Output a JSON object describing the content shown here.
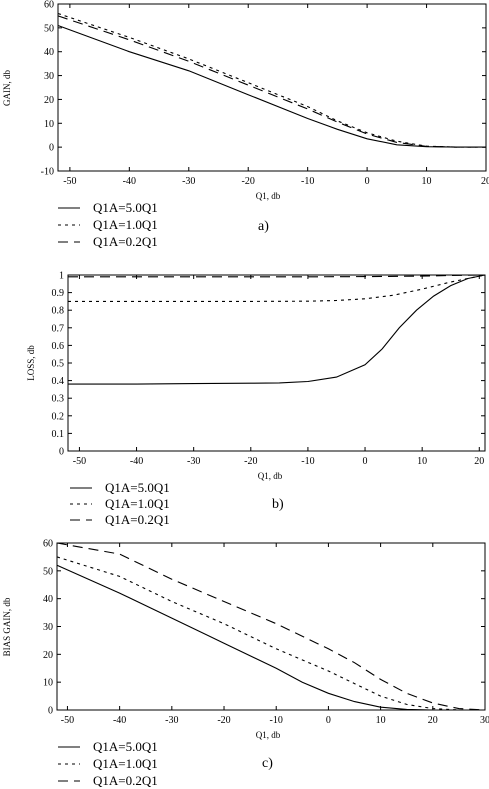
{
  "chart_data": [
    {
      "type": "line",
      "panel_label": "a)",
      "xlabel": "Q1, db",
      "ylabel": "GAIN, db",
      "xlim": [
        -52,
        20
      ],
      "ylim": [
        -10,
        60
      ],
      "xticks": [
        -50,
        -40,
        -30,
        -20,
        -10,
        0,
        10,
        20
      ],
      "yticks": [
        -10,
        0,
        10,
        20,
        30,
        40,
        50,
        60
      ],
      "grid": false,
      "legend_position": "bottom-left",
      "series": [
        {
          "name": "Q1A=5.0Q1",
          "dash": "solid",
          "x": [
            -52,
            -40,
            -30,
            -20,
            -10,
            -5,
            0,
            5,
            10,
            15,
            20
          ],
          "y": [
            51,
            40,
            32,
            22,
            12,
            7.5,
            3.5,
            1,
            0.2,
            0,
            0
          ]
        },
        {
          "name": "Q1A=1.0Q1",
          "dash": "dotted",
          "x": [
            -52,
            -40,
            -30,
            -20,
            -10,
            -5,
            0,
            5,
            10,
            15,
            20
          ],
          "y": [
            56,
            46,
            37,
            27,
            17,
            11,
            6,
            2.5,
            0.4,
            0,
            0
          ]
        },
        {
          "name": "Q1A=0.2Q1",
          "dash": "dashed",
          "x": [
            -52,
            -40,
            -30,
            -20,
            -10,
            -5,
            0,
            5,
            10,
            15,
            20
          ],
          "y": [
            55,
            45,
            36,
            26,
            16,
            10.5,
            5.5,
            2,
            0.3,
            0,
            0
          ]
        }
      ]
    },
    {
      "type": "line",
      "panel_label": "b)",
      "xlabel": "Q1, db",
      "ylabel": "LOSS, db",
      "xlim": [
        -52,
        21
      ],
      "ylim": [
        0,
        1
      ],
      "xticks": [
        -50,
        -40,
        -30,
        -20,
        -10,
        0,
        10,
        20
      ],
      "yticks": [
        0,
        0.1,
        0.2,
        0.3,
        0.4,
        0.5,
        0.6,
        0.7,
        0.8,
        0.9,
        1
      ],
      "grid": false,
      "legend_position": "bottom-left",
      "series": [
        {
          "name": "Q1A=5.0Q1",
          "dash": "solid",
          "x": [
            -52,
            -40,
            -30,
            -20,
            -15,
            -10,
            -5,
            0,
            3,
            6,
            9,
            12,
            15,
            18,
            21
          ],
          "y": [
            0.38,
            0.38,
            0.383,
            0.385,
            0.387,
            0.395,
            0.42,
            0.49,
            0.58,
            0.7,
            0.8,
            0.88,
            0.94,
            0.98,
            1.0
          ]
        },
        {
          "name": "Q1A=1.0Q1",
          "dash": "dotted",
          "x": [
            -52,
            -40,
            -30,
            -20,
            -10,
            -5,
            0,
            5,
            10,
            15,
            21
          ],
          "y": [
            0.85,
            0.85,
            0.85,
            0.85,
            0.851,
            0.855,
            0.865,
            0.885,
            0.92,
            0.96,
            1.0
          ]
        },
        {
          "name": "Q1A=0.2Q1",
          "dash": "dashed",
          "x": [
            -52,
            -30,
            -10,
            0,
            10,
            15,
            21
          ],
          "y": [
            0.99,
            0.99,
            0.99,
            0.991,
            0.994,
            0.997,
            1.0
          ]
        }
      ]
    },
    {
      "type": "line",
      "panel_label": "c)",
      "xlabel": "Q1, db",
      "ylabel": "BIAS GAIN, db",
      "xlim": [
        -52,
        30
      ],
      "ylim": [
        0,
        60
      ],
      "xticks": [
        -50,
        -40,
        -30,
        -20,
        -10,
        0,
        10,
        20,
        30
      ],
      "yticks": [
        0,
        10,
        20,
        30,
        40,
        50,
        60
      ],
      "grid": false,
      "legend_position": "bottom-left",
      "series": [
        {
          "name": "Q1A=5.0Q1",
          "dash": "solid",
          "x": [
            -52,
            -40,
            -30,
            -20,
            -10,
            -5,
            0,
            5,
            10,
            15,
            20,
            30
          ],
          "y": [
            52,
            42,
            33,
            24,
            15,
            10,
            6,
            3,
            1,
            0.2,
            0,
            0
          ]
        },
        {
          "name": "Q1A=1.0Q1",
          "dash": "dotted",
          "x": [
            -52,
            -40,
            -30,
            -20,
            -10,
            0,
            5,
            10,
            15,
            20,
            25,
            30
          ],
          "y": [
            55,
            48,
            39,
            31,
            22,
            14,
            9.5,
            5,
            2,
            0.5,
            0,
            0
          ]
        },
        {
          "name": "Q1A=0.2Q1",
          "dash": "dashed",
          "x": [
            -52,
            -40,
            -30,
            -20,
            -10,
            0,
            5,
            10,
            15,
            20,
            25,
            30
          ],
          "y": [
            60,
            56,
            47,
            39,
            31,
            22,
            17,
            11,
            6,
            2.5,
            0.5,
            0
          ]
        }
      ]
    }
  ]
}
